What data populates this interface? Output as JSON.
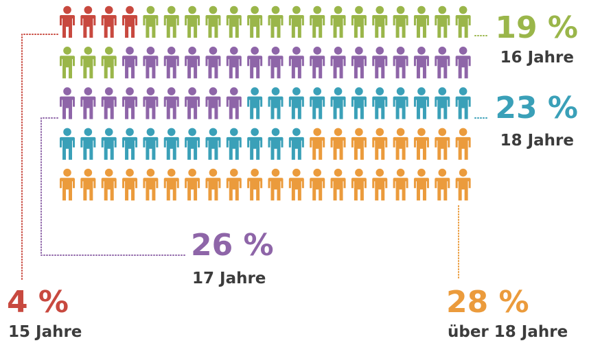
{
  "chart_data": {
    "type": "pictogram",
    "categories": [
      "15 Jahre",
      "16 Jahre",
      "17 Jahre",
      "18 Jahre",
      "über 18 Jahre"
    ],
    "values": [
      4,
      19,
      26,
      23,
      28
    ],
    "value_labels": [
      "4 %",
      "19 %",
      "26 %",
      "23 %",
      "28 %"
    ],
    "colors": [
      "#c8493f",
      "#9ab64a",
      "#8e65a8",
      "#3aa0b8",
      "#eb9b3c"
    ]
  }
}
